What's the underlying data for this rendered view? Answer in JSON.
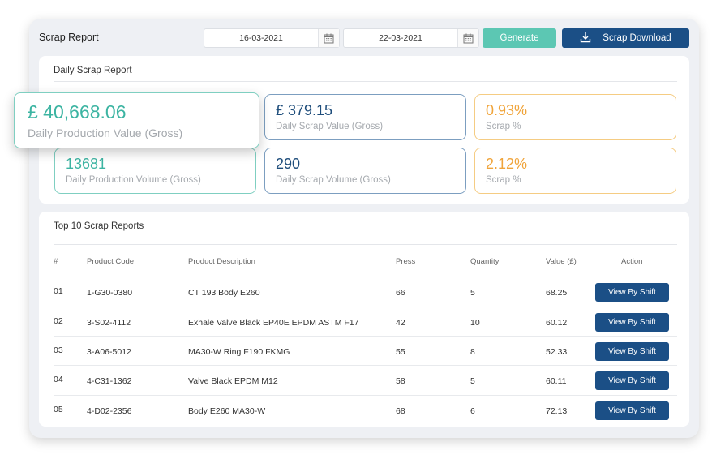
{
  "header": {
    "title": "Scrap Report",
    "date_from": "16-03-2021",
    "date_to": "22-03-2021",
    "generate_label": "Generate",
    "download_label": "Scrap Download"
  },
  "daily": {
    "title": "Daily Scrap Report",
    "hero": {
      "value": "£ 40,668.06",
      "label": "Daily Production Value (Gross)"
    },
    "cards": [
      {
        "value": "£ 379.15",
        "label": "Daily Scrap Value (Gross)"
      },
      {
        "value": "0.93%",
        "label": "Scrap %"
      },
      {
        "value": "13681",
        "label": "Daily Production Volume (Gross)"
      },
      {
        "value": "290",
        "label": "Daily Scrap Volume (Gross)"
      },
      {
        "value": "2.12%",
        "label": "Scrap %"
      }
    ]
  },
  "top": {
    "title": "Top 10 Scrap Reports",
    "columns": [
      "#",
      "Product Code",
      "Product Description",
      "Press",
      "Quantity",
      "Value (£)",
      "Action"
    ],
    "rows": [
      {
        "num": "01",
        "code": "1-G30-0380",
        "desc": "CT 193 Body E260",
        "press": "66",
        "qty": "5",
        "value": "68.25",
        "action": "View By Shift"
      },
      {
        "num": "02",
        "code": "3-S02-4112",
        "desc": "Exhale Valve Black EP40E EPDM ASTM F17",
        "press": "42",
        "qty": "10",
        "value": "60.12",
        "action": "View By Shift"
      },
      {
        "num": "03",
        "code": "3-A06-5012",
        "desc": "MA30-W Ring F190 FKMG",
        "press": "55",
        "qty": "8",
        "value": "52.33",
        "action": "View By Shift"
      },
      {
        "num": "04",
        "code": "4-C31-1362",
        "desc": "Valve Black EPDM M12",
        "press": "58",
        "qty": "5",
        "value": "60.11",
        "action": "View By Shift"
      },
      {
        "num": "05",
        "code": "4-D02-2356",
        "desc": "Body E260 MA30-W",
        "press": "68",
        "qty": "6",
        "value": "72.13",
        "action": "View By Shift"
      }
    ]
  },
  "colors": {
    "accent_teal": "#5cc7b3",
    "accent_navy": "#1b4f86",
    "accent_orange": "#f0a43a"
  },
  "icons": [
    "calendar-icon",
    "download-icon"
  ]
}
